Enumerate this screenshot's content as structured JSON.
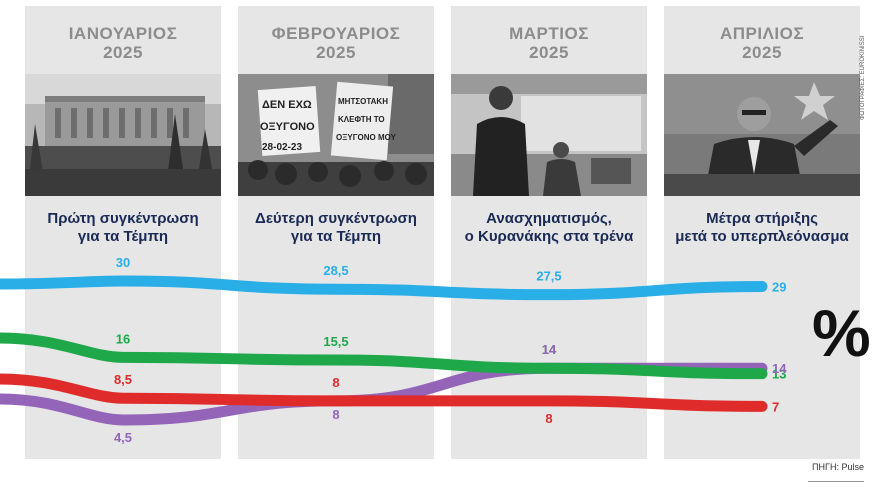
{
  "months": [
    {
      "name": "ΙΑΝΟΥΑΡΙΟΣ",
      "year": "2025",
      "caption_lines": [
        "Πρώτη συγκέντρωση",
        "για τα Τέμπη"
      ]
    },
    {
      "name": "ΦΕΒΡΟΥΑΡΙΟΣ",
      "year": "2025",
      "caption_lines": [
        "Δεύτερη συγκέντρωση",
        "για τα Τέμπη"
      ]
    },
    {
      "name": "ΜΑΡΤΙΟΣ",
      "year": "2025",
      "caption_lines": [
        "Ανασχηματισμός,",
        "ο Κυρανάκης στα τρένα"
      ]
    },
    {
      "name": "ΑΠΡΙΛΙΟΣ",
      "year": "2025",
      "caption_lines": [
        "Μέτρα στήριξης",
        "μετά το υπερπλεόνασμα"
      ]
    }
  ],
  "photo_texts": {
    "sign_1": "ΔΕΝ ΕΧΩ",
    "sign_2": "ΟΞΥΓΟΝΟ",
    "sign_3": "28-02-23",
    "sign_4": "ΜΗΤΣΟΤΑΚΗ",
    "sign_5": "ΚΛΕΦΤΗ ΤΟ",
    "sign_6": "ΟΞΥΓΟΝΟ ΜΟΥ"
  },
  "photo_credit": "ΦΩΤΟΓΡΑΦΙΕΣ: EUROKINISSI",
  "percent_sign": "%",
  "source": "ΠΗΓΗ: Pulse",
  "colors": {
    "blue": "#2aaee8",
    "green": "#1ea84a",
    "red": "#e02b2b",
    "purple": "#9364b8",
    "column_bg": "#e6e6e6",
    "caption": "#1a2a55"
  },
  "chart_data": {
    "type": "line",
    "categories": [
      "ΙΑΝΟΥΑΡΙΟΣ 2025",
      "ΦΕΒΡΟΥΑΡΙΟΣ 2025",
      "ΜΑΡΤΙΟΣ 2025",
      "ΑΠΡΙΛΙΟΣ 2025"
    ],
    "series": [
      {
        "color": "#2aaee8",
        "values": [
          30,
          28.5,
          27.5,
          29
        ],
        "labels": [
          "30",
          "28,5",
          "27,5",
          "29"
        ]
      },
      {
        "color": "#1ea84a",
        "values": [
          16,
          15.5,
          14,
          13
        ],
        "labels": [
          "16",
          "15,5",
          "14",
          "13"
        ]
      },
      {
        "color": "#e02b2b",
        "values": [
          8.5,
          8,
          8,
          7
        ],
        "labels": [
          "8,5",
          "8",
          "8",
          "7"
        ]
      },
      {
        "color": "#9364b8",
        "values": [
          4.5,
          8,
          14,
          14
        ],
        "labels": [
          "4,5",
          "8",
          "14",
          "14"
        ]
      }
    ]
  }
}
